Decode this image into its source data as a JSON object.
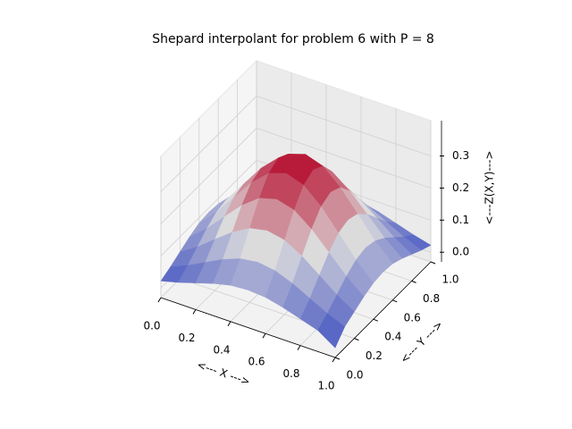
{
  "chart_data": {
    "type": "surface",
    "title": "Shepard interpolant for problem 6 with P = 8",
    "xlabel": "<--- X --->",
    "ylabel": "<--- Y --->",
    "zlabel": "<---Z(X,Y)--->",
    "x": [
      0,
      0.1,
      0.2,
      0.3,
      0.4,
      0.5,
      0.6,
      0.7,
      0.8,
      0.9,
      1
    ],
    "y": [
      0,
      0.1,
      0.2,
      0.3,
      0.4,
      0.5,
      0.6,
      0.7,
      0.8,
      0.9,
      1
    ],
    "z": [
      [
        0.022,
        0.036,
        0.053,
        0.07,
        0.083,
        0.087,
        0.083,
        0.07,
        0.053,
        0.036,
        0.0
      ],
      [
        0.036,
        0.059,
        0.087,
        0.115,
        0.136,
        0.144,
        0.136,
        0.115,
        0.087,
        0.059,
        0.036
      ],
      [
        0.053,
        0.087,
        0.129,
        0.17,
        0.201,
        0.212,
        0.201,
        0.17,
        0.129,
        0.087,
        0.053
      ],
      [
        0.07,
        0.115,
        0.17,
        0.224,
        0.265,
        0.28,
        0.265,
        0.224,
        0.17,
        0.115,
        0.07
      ],
      [
        0.083,
        0.136,
        0.201,
        0.265,
        0.313,
        0.331,
        0.313,
        0.265,
        0.201,
        0.136,
        0.083
      ],
      [
        0.087,
        0.144,
        0.212,
        0.28,
        0.331,
        0.35,
        0.331,
        0.28,
        0.212,
        0.144,
        0.087
      ],
      [
        0.083,
        0.136,
        0.201,
        0.265,
        0.313,
        0.331,
        0.313,
        0.265,
        0.201,
        0.136,
        0.083
      ],
      [
        0.07,
        0.115,
        0.17,
        0.224,
        0.265,
        0.28,
        0.265,
        0.224,
        0.17,
        0.115,
        0.07
      ],
      [
        0.053,
        0.087,
        0.129,
        0.17,
        0.201,
        0.212,
        0.201,
        0.17,
        0.129,
        0.087,
        0.053
      ],
      [
        0.036,
        0.059,
        0.087,
        0.115,
        0.136,
        0.144,
        0.136,
        0.115,
        0.087,
        0.059,
        0.036
      ],
      [
        0.022,
        0.036,
        0.053,
        0.07,
        0.083,
        0.087,
        0.083,
        0.07,
        0.053,
        0.036,
        0.022
      ]
    ],
    "xlim": [
      0,
      1
    ],
    "ylim": [
      0,
      1
    ],
    "zlim": [
      -0.03,
      0.41
    ],
    "xticks": [
      {
        "value": 0,
        "label": "0.0"
      },
      0.2,
      0.4,
      0.6,
      0.8,
      {
        "value": 1,
        "label": "1.0"
      }
    ],
    "yticks": [
      {
        "value": 0,
        "label": "0.0"
      },
      0.2,
      0.4,
      0.6,
      0.8,
      {
        "value": 1,
        "label": "1.0"
      }
    ],
    "zticks": [
      {
        "value": 0,
        "label": "0.0"
      },
      0.1,
      0.2,
      0.3
    ],
    "colormap": [
      "#3b4cc0",
      "#dddcdc",
      "#b40426"
    ],
    "grid": true
  }
}
